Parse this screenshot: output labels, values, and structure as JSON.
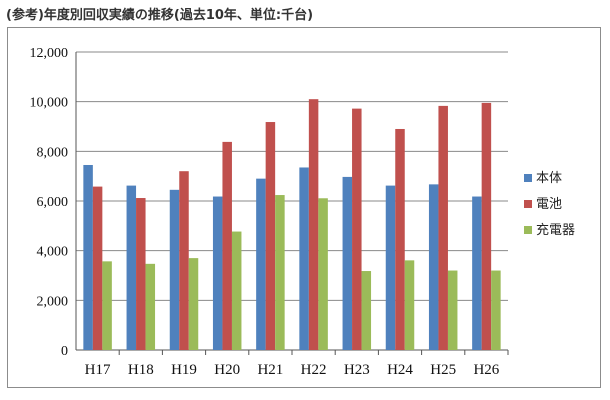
{
  "chart_data": {
    "type": "bar",
    "title": "(参考)年度別回収実績の推移(過去10年、単位:千台)",
    "categories": [
      "H17",
      "H18",
      "H19",
      "H20",
      "H21",
      "H22",
      "H23",
      "H24",
      "H25",
      "H26"
    ],
    "series": [
      {
        "name": "本体",
        "color": "#4f81bd",
        "values": [
          7450,
          6620,
          6450,
          6180,
          6900,
          7350,
          6970,
          6620,
          6670,
          6180
        ]
      },
      {
        "name": "電池",
        "color": "#c0504d",
        "values": [
          6580,
          6120,
          7200,
          8380,
          9180,
          10100,
          9720,
          8900,
          9830,
          9950
        ]
      },
      {
        "name": "充電器",
        "color": "#9bbb59",
        "values": [
          3570,
          3470,
          3700,
          4770,
          6240,
          6110,
          3180,
          3610,
          3200,
          3200
        ]
      }
    ],
    "ylim": [
      0,
      12000
    ],
    "yticks": [
      "0",
      "2,000",
      "4,000",
      "6,000",
      "8,000",
      "10,000",
      "12,000"
    ],
    "legend_position": "right",
    "grid": true
  }
}
